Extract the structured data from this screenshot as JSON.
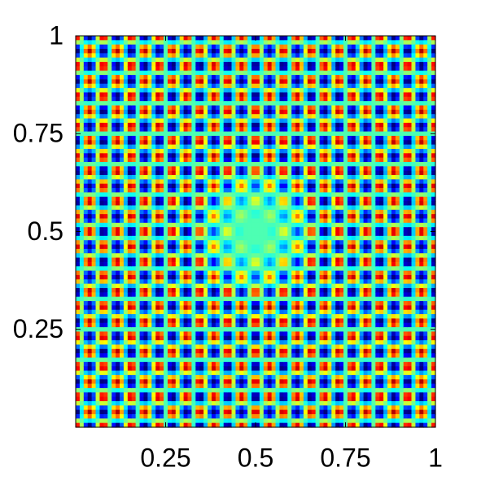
{
  "chart_data": {
    "type": "heatmap",
    "colormap": "jet",
    "xlim": [
      0,
      1
    ],
    "ylim": [
      0,
      1
    ],
    "xticks": [
      0.25,
      0.5,
      0.75,
      1
    ],
    "yticks": [
      0.25,
      0.5,
      0.75,
      1
    ]
  }
}
